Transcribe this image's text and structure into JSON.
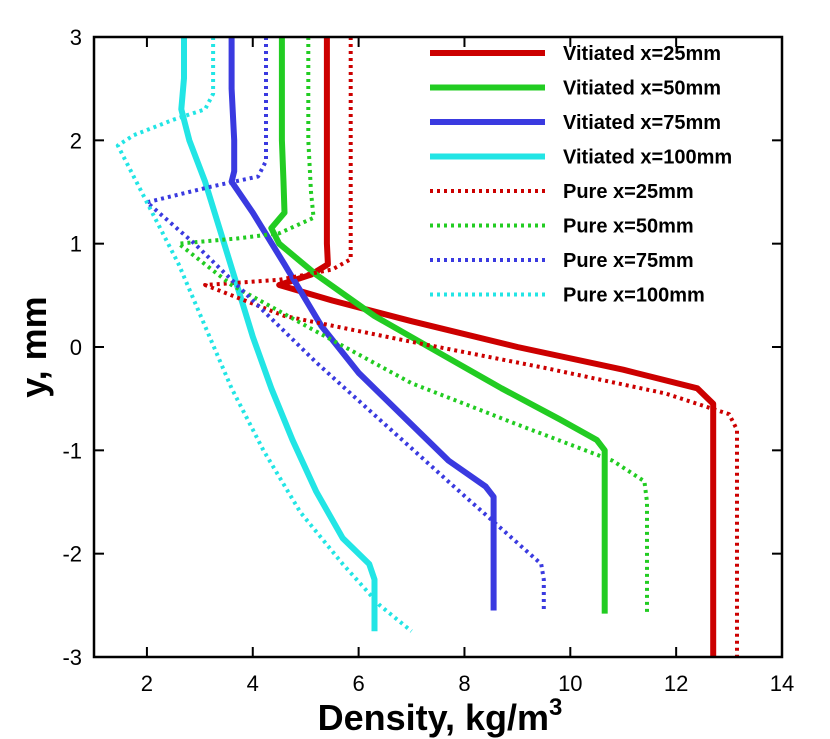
{
  "chart_data": {
    "type": "line",
    "title": "",
    "xlabel": "Density, kg/m",
    "xlabel_sup": "3",
    "ylabel": "y, mm",
    "xlim": [
      1,
      14
    ],
    "ylim": [
      -3,
      3
    ],
    "xticks": [
      2,
      4,
      6,
      8,
      10,
      12,
      14
    ],
    "yticks": [
      -3,
      -2,
      -1,
      0,
      1,
      2,
      3
    ],
    "legend_position": "top-right",
    "series": [
      {
        "name": "Vitiated x=25mm",
        "color": "#cc0000",
        "dash": "solid",
        "points": [
          [
            5.4,
            3.0
          ],
          [
            5.4,
            2.0
          ],
          [
            5.4,
            1.0
          ],
          [
            5.42,
            0.8
          ],
          [
            5.1,
            0.7
          ],
          [
            4.5,
            0.6
          ],
          [
            5.5,
            0.45
          ],
          [
            7.0,
            0.25
          ],
          [
            9.0,
            0.0
          ],
          [
            11.0,
            -0.22
          ],
          [
            12.4,
            -0.4
          ],
          [
            12.7,
            -0.55
          ],
          [
            12.7,
            -1.0
          ],
          [
            12.7,
            -2.0
          ],
          [
            12.7,
            -3.0
          ]
        ]
      },
      {
        "name": "Vitiated x=50mm",
        "color": "#22cc22",
        "dash": "solid",
        "points": [
          [
            4.55,
            3.0
          ],
          [
            4.55,
            2.0
          ],
          [
            4.58,
            1.6
          ],
          [
            4.6,
            1.3
          ],
          [
            4.35,
            1.15
          ],
          [
            4.5,
            1.0
          ],
          [
            5.2,
            0.7
          ],
          [
            6.3,
            0.3
          ],
          [
            7.5,
            -0.05
          ],
          [
            8.7,
            -0.4
          ],
          [
            9.8,
            -0.7
          ],
          [
            10.5,
            -0.9
          ],
          [
            10.65,
            -1.0
          ],
          [
            10.65,
            -2.0
          ],
          [
            10.65,
            -2.58
          ]
        ]
      },
      {
        "name": "Vitiated x=75mm",
        "color": "#3a3ae0",
        "dash": "solid",
        "points": [
          [
            3.6,
            3.0
          ],
          [
            3.6,
            2.5
          ],
          [
            3.65,
            2.0
          ],
          [
            3.65,
            1.7
          ],
          [
            3.6,
            1.6
          ],
          [
            4.0,
            1.3
          ],
          [
            4.6,
            0.8
          ],
          [
            5.3,
            0.2
          ],
          [
            6.0,
            -0.25
          ],
          [
            6.9,
            -0.7
          ],
          [
            7.7,
            -1.1
          ],
          [
            8.4,
            -1.35
          ],
          [
            8.55,
            -1.45
          ],
          [
            8.55,
            -2.0
          ],
          [
            8.55,
            -2.55
          ]
        ]
      },
      {
        "name": "Vitiated x=100mm",
        "color": "#22e5e5",
        "dash": "solid",
        "points": [
          [
            2.7,
            3.0
          ],
          [
            2.7,
            2.6
          ],
          [
            2.65,
            2.3
          ],
          [
            2.8,
            2.0
          ],
          [
            3.1,
            1.6
          ],
          [
            3.4,
            1.1
          ],
          [
            3.7,
            0.6
          ],
          [
            4.0,
            0.1
          ],
          [
            4.35,
            -0.4
          ],
          [
            4.75,
            -0.9
          ],
          [
            5.2,
            -1.4
          ],
          [
            5.7,
            -1.85
          ],
          [
            6.2,
            -2.1
          ],
          [
            6.3,
            -2.25
          ],
          [
            6.3,
            -2.75
          ]
        ]
      },
      {
        "name": "Pure x=25mm",
        "color": "#cc0000",
        "dash": "dotted",
        "points": [
          [
            5.85,
            3.0
          ],
          [
            5.85,
            2.0
          ],
          [
            5.85,
            1.4
          ],
          [
            5.85,
            1.0
          ],
          [
            5.85,
            0.85
          ],
          [
            5.5,
            0.75
          ],
          [
            4.5,
            0.65
          ],
          [
            3.1,
            0.6
          ],
          [
            4.6,
            0.3
          ],
          [
            7.0,
            0.05
          ],
          [
            9.5,
            -0.2
          ],
          [
            11.8,
            -0.45
          ],
          [
            13.0,
            -0.65
          ],
          [
            13.15,
            -0.8
          ],
          [
            13.15,
            -1.5
          ],
          [
            13.15,
            -3.0
          ]
        ]
      },
      {
        "name": "Pure x=50mm",
        "color": "#22cc22",
        "dash": "dotted",
        "points": [
          [
            5.05,
            3.0
          ],
          [
            5.05,
            2.0
          ],
          [
            5.1,
            1.5
          ],
          [
            5.15,
            1.25
          ],
          [
            4.5,
            1.1
          ],
          [
            3.7,
            1.05
          ],
          [
            2.6,
            1.0
          ],
          [
            3.6,
            0.6
          ],
          [
            5.2,
            0.15
          ],
          [
            7.0,
            -0.35
          ],
          [
            9.0,
            -0.75
          ],
          [
            10.8,
            -1.1
          ],
          [
            11.4,
            -1.3
          ],
          [
            11.45,
            -1.5
          ],
          [
            11.45,
            -2.58
          ]
        ]
      },
      {
        "name": "Pure x=75mm",
        "color": "#3a3ae0",
        "dash": "dotted",
        "points": [
          [
            4.25,
            3.0
          ],
          [
            4.25,
            2.5
          ],
          [
            4.25,
            2.0
          ],
          [
            4.25,
            1.8
          ],
          [
            4.1,
            1.65
          ],
          [
            3.2,
            1.55
          ],
          [
            2.0,
            1.4
          ],
          [
            2.9,
            1.0
          ],
          [
            4.0,
            0.45
          ],
          [
            5.2,
            -0.15
          ],
          [
            6.5,
            -0.75
          ],
          [
            7.8,
            -1.35
          ],
          [
            8.9,
            -1.85
          ],
          [
            9.45,
            -2.1
          ],
          [
            9.5,
            -2.25
          ],
          [
            9.5,
            -2.55
          ]
        ]
      },
      {
        "name": "Pure x=100mm",
        "color": "#22e5e5",
        "dash": "dotted",
        "points": [
          [
            3.25,
            3.0
          ],
          [
            3.25,
            2.45
          ],
          [
            3.1,
            2.3
          ],
          [
            2.5,
            2.2
          ],
          [
            1.75,
            2.05
          ],
          [
            1.45,
            1.95
          ],
          [
            2.0,
            1.4
          ],
          [
            2.6,
            0.8
          ],
          [
            3.1,
            0.2
          ],
          [
            3.6,
            -0.4
          ],
          [
            4.2,
            -1.0
          ],
          [
            4.9,
            -1.6
          ],
          [
            5.7,
            -2.1
          ],
          [
            6.4,
            -2.5
          ],
          [
            7.0,
            -2.75
          ]
        ]
      }
    ]
  }
}
